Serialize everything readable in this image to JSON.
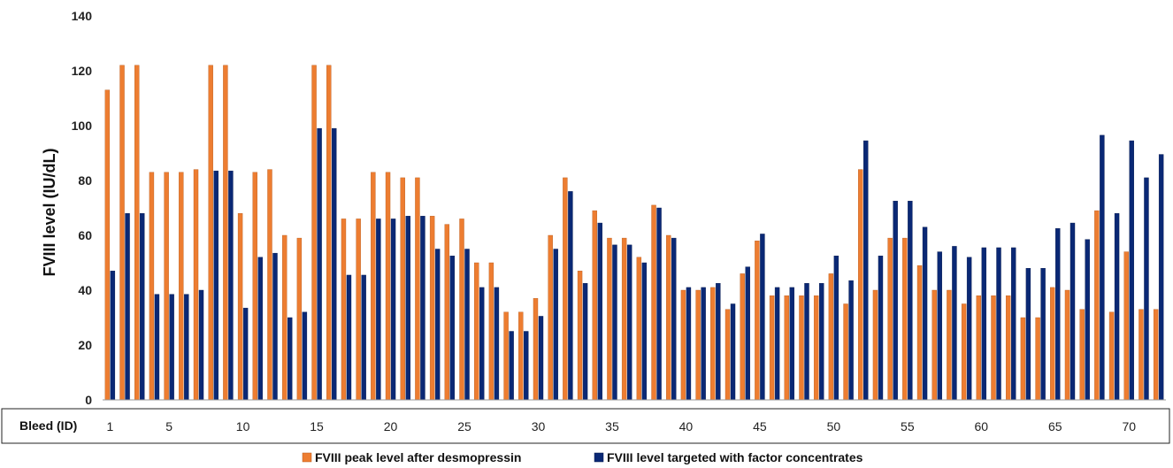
{
  "chart_data": {
    "type": "bar",
    "ylabel": "FVIII level (IU/dL)",
    "xlabel": "Bleed (ID)",
    "ylim": [
      0,
      140
    ],
    "yticks": [
      0,
      20,
      40,
      60,
      80,
      100,
      120,
      140
    ],
    "xtick_labels": [
      "1",
      "5",
      "10",
      "15",
      "20",
      "25",
      "30",
      "35",
      "40",
      "45",
      "50",
      "55",
      "60",
      "65",
      "70"
    ],
    "xtick_ids": [
      1,
      5,
      10,
      15,
      20,
      25,
      30,
      35,
      40,
      45,
      50,
      55,
      60,
      65,
      70
    ],
    "categories": [
      1,
      2,
      3,
      4,
      5,
      6,
      7,
      8,
      9,
      10,
      11,
      12,
      13,
      14,
      15,
      16,
      17,
      18,
      19,
      20,
      21,
      22,
      23,
      24,
      25,
      26,
      27,
      28,
      29,
      30,
      31,
      32,
      33,
      34,
      35,
      36,
      37,
      38,
      39,
      40,
      41,
      42,
      43,
      44,
      45,
      46,
      47,
      48,
      49,
      50,
      51,
      52,
      53,
      54,
      55,
      56,
      57,
      58,
      59,
      60,
      61,
      62,
      63,
      64,
      65,
      66,
      67,
      68,
      69,
      70,
      71,
      72
    ],
    "legend_position": "bottom",
    "grid": false,
    "series": [
      {
        "name": "FVIII peak level after desmopressin",
        "color": "#ED7D31",
        "values": [
          113,
          122,
          122,
          83,
          83,
          83,
          84,
          122,
          122,
          68,
          83,
          84,
          60,
          59,
          122,
          122,
          66,
          66,
          83,
          83,
          81,
          81,
          67,
          64,
          66,
          50,
          50,
          32,
          32,
          37,
          60,
          81,
          47,
          69,
          59,
          59,
          52,
          71,
          60,
          40,
          40,
          41,
          33,
          46,
          58,
          38,
          38,
          38,
          38,
          46,
          35,
          84,
          40,
          59,
          59,
          49,
          40,
          40,
          35,
          38,
          38,
          38,
          30,
          30,
          41,
          40,
          33,
          69,
          32,
          54,
          33,
          33
        ]
      },
      {
        "name": "FVIII level targeted with factor concentrates",
        "color": "#0A2875",
        "values": [
          47,
          68,
          68,
          38.5,
          38.5,
          38.5,
          40,
          83.5,
          83.5,
          33.5,
          52,
          53.5,
          30,
          32,
          99,
          99,
          45.5,
          45.5,
          66,
          66,
          67,
          67,
          55,
          52.5,
          55,
          41,
          41,
          25,
          25,
          30.5,
          55,
          76,
          42.5,
          64.5,
          56.5,
          56.5,
          50,
          70,
          59,
          41,
          41,
          42.5,
          35,
          48.5,
          60.5,
          41,
          41,
          42.5,
          42.5,
          52.5,
          43.5,
          94.5,
          52.5,
          72.5,
          72.5,
          63,
          54,
          56,
          52,
          55.5,
          55.5,
          55.5,
          48,
          48,
          62.5,
          64.5,
          58.5,
          96.5,
          68,
          94.5,
          81,
          89.5
        ]
      }
    ]
  }
}
